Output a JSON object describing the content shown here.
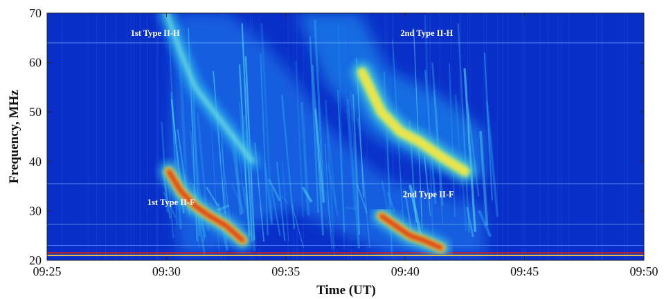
{
  "chart_data": {
    "type": "heatmap",
    "xlabel": "Time (UT)",
    "ylabel": "Frequency, MHz",
    "x_ticks": [
      "09:25",
      "09:30",
      "09:35",
      "09:40",
      "09:45",
      "09:50"
    ],
    "x_tick_minutes": [
      0,
      5,
      10,
      15,
      20,
      25
    ],
    "xlim_minutes_after_0925": [
      0,
      25
    ],
    "y_ticks": [
      20,
      30,
      40,
      50,
      60,
      70
    ],
    "ylim": [
      20,
      70
    ],
    "colormap": "jet",
    "colors": {
      "background": "#0a2fc8",
      "low": "#1650e0",
      "mid": "#3fd6e8",
      "high": "#ffe23a",
      "peak": "#d01a10"
    },
    "annotations": [
      {
        "text": "1st Type II-H",
        "x_min": 3.5,
        "y_mhz": 65.4
      },
      {
        "text": "2nd Type II-H",
        "x_min": 14.8,
        "y_mhz": 65.4
      },
      {
        "text": "1st Type II-F",
        "x_min": 4.2,
        "y_mhz": 31.2
      },
      {
        "text": "2nd Type II-F",
        "x_min": 14.9,
        "y_mhz": 32.8
      }
    ],
    "bursts": [
      {
        "name": "1st Type II-F",
        "points": [
          [
            5.1,
            38.0
          ],
          [
            5.6,
            34.0
          ],
          [
            6.2,
            31.0
          ],
          [
            6.8,
            29.0
          ],
          [
            7.5,
            27.0
          ],
          [
            8.2,
            24.0
          ]
        ],
        "peak_intensity": "red"
      },
      {
        "name": "1st Type II-H",
        "points": [
          [
            5.0,
            70.0
          ],
          [
            5.6,
            62.0
          ],
          [
            6.2,
            55.0
          ],
          [
            7.0,
            50.0
          ],
          [
            7.8,
            45.0
          ],
          [
            8.6,
            40.0
          ]
        ],
        "peak_intensity": "cyan"
      },
      {
        "name": "2nd Type II-F",
        "points": [
          [
            14.0,
            29.0
          ],
          [
            14.6,
            27.0
          ],
          [
            15.2,
            25.0
          ],
          [
            15.8,
            24.0
          ],
          [
            16.5,
            22.5
          ]
        ],
        "peak_intensity": "red"
      },
      {
        "name": "2nd Type II-H",
        "points": [
          [
            13.2,
            58.0
          ],
          [
            14.0,
            50.0
          ],
          [
            14.8,
            46.0
          ],
          [
            15.6,
            44.0
          ],
          [
            16.5,
            41.0
          ],
          [
            17.5,
            38.0
          ]
        ],
        "peak_intensity": "yellow"
      }
    ],
    "horizontal_lines_mhz": [
      {
        "y": 64.0,
        "color": "#8fd3ff"
      },
      {
        "y": 21.5,
        "color": "#e02010"
      },
      {
        "y": 21.0,
        "color": "#ffd23a"
      },
      {
        "y": 27.3,
        "color": "#7fc3ff"
      },
      {
        "y": 35.5,
        "color": "#7fc3ff"
      },
      {
        "y": 23.0,
        "color": "#5fa3ff"
      }
    ]
  }
}
